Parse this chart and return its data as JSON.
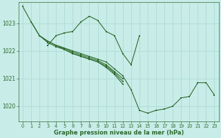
{
  "background_color": "#c8ece8",
  "plot_bg_color": "#c8ece8",
  "line_color": "#2d6a2d",
  "grid_color": "#b0ddd8",
  "xlabel": "Graphe pression niveau de la mer (hPa)",
  "xlabel_color": "#2d6a2d",
  "tick_color": "#2d6a2d",
  "ylim": [
    1019.45,
    1023.75
  ],
  "xlim": [
    -0.5,
    23.5
  ],
  "yticks": [
    1020,
    1021,
    1022,
    1023
  ],
  "xticks": [
    0,
    1,
    2,
    3,
    4,
    5,
    6,
    7,
    8,
    9,
    10,
    11,
    12,
    13,
    14,
    15,
    16,
    17,
    18,
    19,
    20,
    21,
    22,
    23
  ],
  "series": [
    {
      "x": [
        0,
        1,
        2,
        3,
        4,
        5,
        6,
        7,
        8,
        9,
        10,
        11,
        12,
        13,
        14,
        15,
        16,
        17,
        18,
        19,
        20,
        21,
        22,
        23
      ],
      "y": [
        1023.6,
        1023.05,
        1022.55,
        1022.35,
        1022.2,
        1022.1,
        1022.0,
        1021.9,
        1021.8,
        1021.7,
        1021.6,
        1021.35,
        1021.1,
        1020.6,
        1019.85,
        1019.75,
        1019.85,
        1019.9,
        1020.0,
        1020.3,
        1020.35,
        1020.85,
        1020.85,
        1020.4
      ]
    },
    {
      "x": [
        1,
        2,
        3,
        4,
        5,
        6,
        7,
        8,
        9,
        10,
        11,
        12
      ],
      "y": [
        1023.05,
        1022.55,
        1022.35,
        1022.2,
        1022.1,
        1021.95,
        1021.85,
        1021.75,
        1021.65,
        1021.5,
        1021.25,
        1021.0
      ]
    },
    {
      "x": [
        2,
        3,
        4,
        5,
        6,
        7,
        8,
        9,
        10,
        11,
        12
      ],
      "y": [
        1022.55,
        1022.3,
        1022.15,
        1022.05,
        1021.9,
        1021.8,
        1021.7,
        1021.6,
        1021.45,
        1021.2,
        1020.9
      ]
    },
    {
      "x": [
        4,
        5,
        6,
        7,
        8,
        9,
        10,
        11,
        12
      ],
      "y": [
        1022.2,
        1022.05,
        1021.9,
        1021.8,
        1021.7,
        1021.6,
        1021.4,
        1021.15,
        1020.8
      ]
    },
    {
      "x": [
        3,
        4,
        5,
        6,
        7,
        8,
        9,
        10,
        11,
        12,
        13,
        14
      ],
      "y": [
        1022.2,
        1022.55,
        1022.65,
        1022.7,
        1023.05,
        1023.25,
        1023.1,
        1022.7,
        1022.55,
        1021.9,
        1021.5,
        1022.55
      ]
    }
  ]
}
